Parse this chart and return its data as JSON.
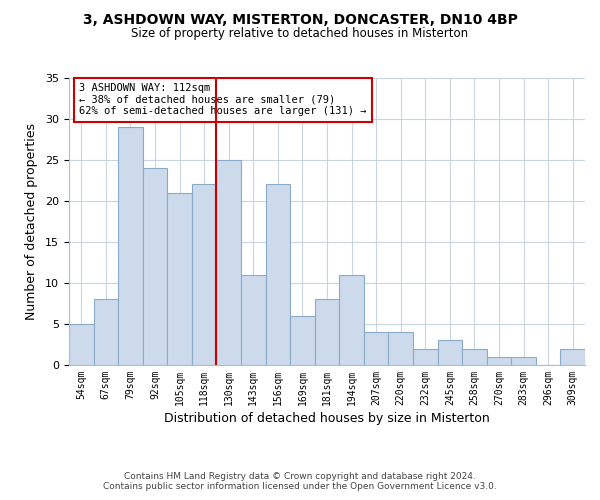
{
  "title1": "3, ASHDOWN WAY, MISTERTON, DONCASTER, DN10 4BP",
  "title2": "Size of property relative to detached houses in Misterton",
  "xlabel": "Distribution of detached houses by size in Misterton",
  "ylabel": "Number of detached properties",
  "bar_labels": [
    "54sqm",
    "67sqm",
    "79sqm",
    "92sqm",
    "105sqm",
    "118sqm",
    "130sqm",
    "143sqm",
    "156sqm",
    "169sqm",
    "181sqm",
    "194sqm",
    "207sqm",
    "220sqm",
    "232sqm",
    "245sqm",
    "258sqm",
    "270sqm",
    "283sqm",
    "296sqm",
    "309sqm"
  ],
  "bar_values": [
    5,
    8,
    29,
    24,
    21,
    22,
    25,
    11,
    22,
    6,
    8,
    11,
    4,
    4,
    2,
    3,
    2,
    1,
    1,
    0,
    2
  ],
  "bar_color": "#ccdaeb",
  "bar_edge_color": "#8aabc8",
  "vline_color": "#cc0000",
  "ylim": [
    0,
    35
  ],
  "yticks": [
    0,
    5,
    10,
    15,
    20,
    25,
    30,
    35
  ],
  "annotation_line1": "3 ASHDOWN WAY: 112sqm",
  "annotation_line2": "← 38% of detached houses are smaller (79)",
  "annotation_line3": "62% of semi-detached houses are larger (131) →",
  "annotation_box_color": "#ffffff",
  "annotation_box_edge": "#cc0000",
  "footer1": "Contains HM Land Registry data © Crown copyright and database right 2024.",
  "footer2": "Contains public sector information licensed under the Open Government Licence v3.0.",
  "background_color": "#ffffff",
  "grid_color": "#c8d4de",
  "vline_index": 5.5
}
